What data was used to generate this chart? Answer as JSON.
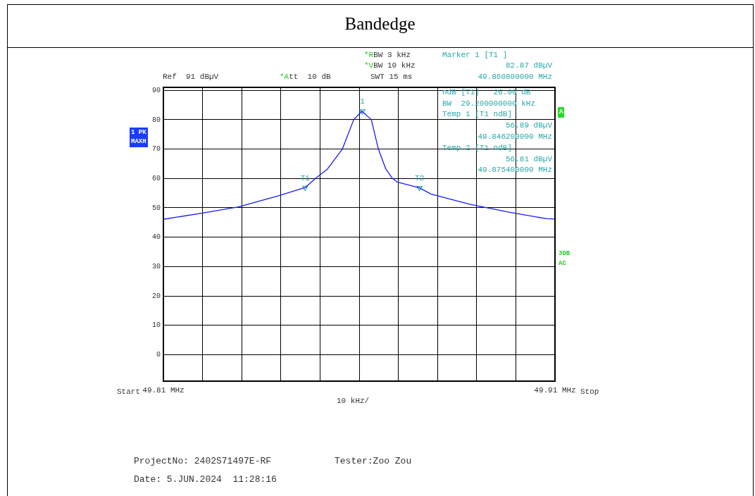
{
  "chart_data": {
    "type": "line",
    "title": "Bandedge",
    "xlim": [
      49.81,
      49.91
    ],
    "xticks": [
      {
        "value": 49.81,
        "label": "49.81 MHz"
      },
      {
        "value": 49.82,
        "label": null
      },
      {
        "value": 49.83,
        "label": null
      },
      {
        "value": 49.84,
        "label": null
      },
      {
        "value": 49.85,
        "label": null
      },
      {
        "value": 49.86,
        "label": null
      },
      {
        "value": 49.87,
        "label": null
      },
      {
        "value": 49.88,
        "label": null
      },
      {
        "value": 49.89,
        "label": null
      },
      {
        "value": 49.9,
        "label": null
      },
      {
        "value": 49.91,
        "label": "49.91 MHz"
      }
    ],
    "ylim": [
      -9,
      91
    ],
    "yticks": [
      0,
      10,
      20,
      30,
      40,
      50,
      60,
      70,
      80,
      90
    ],
    "grid": true,
    "legend": false,
    "marker": "none",
    "line_style": "solid",
    "series": [
      {
        "color": "#1a1aff",
        "x": [
          49.81,
          49.8195,
          49.8292,
          49.8391,
          49.8462,
          49.849,
          49.8519,
          49.8557,
          49.8586,
          49.8607,
          49.8631,
          49.8649,
          49.8668,
          49.8685,
          49.8697,
          49.8754,
          49.8783,
          49.8882,
          49.898,
          49.9078,
          49.91
        ],
        "values": [
          46.1,
          48.1,
          50.3,
          54.0,
          56.89,
          60.2,
          63.2,
          70,
          80,
          82.9,
          80,
          70,
          63.2,
          60,
          58.8,
          56.81,
          54.7,
          51.2,
          48.6,
          46.3,
          46.2
        ]
      },
      {
        "type": "scatter",
        "color": "#2aa7a7",
        "marker": "triangle",
        "x": [
          49.8608,
          49.8462,
          49.8754
        ],
        "values": [
          82.87,
          56.89,
          56.81
        ]
      }
    ],
    "annotations": [
      "*RBW 3 kHz",
      "*VBW 10 kHz",
      "Ref  91 dBµV",
      "*Att  10 dB",
      "SWT 15 ms",
      "Marker 1 [T1 ]",
      "82.87 dBµV",
      "49.860800000 MHz",
      "ndB [T1]   26.00 dB",
      "BW  29.200000000 kHz",
      "Temp 1 [T1 ndB]",
      "56.89 dBµV",
      "49.846200000 MHz",
      "Temp 2 [T1 ndB]",
      "56.81 dBµV",
      "49.875400000 MHz",
      "1 PK",
      "MAXH",
      "A",
      "3DB",
      "AC",
      "Start",
      "10 kHz/",
      "Stop",
      "ProjectNo: 2402S71497E-RF",
      "Tester:Zoo Zou",
      "Date: 5.JUN.2024  11:28:16",
      {
        "text": "1",
        "x": 49.8608,
        "y": 82.87
      },
      {
        "text": "T1",
        "x": 49.8462,
        "y": 56.89
      },
      {
        "text": "T2",
        "x": 49.8754,
        "y": 56.81
      }
    ]
  }
}
